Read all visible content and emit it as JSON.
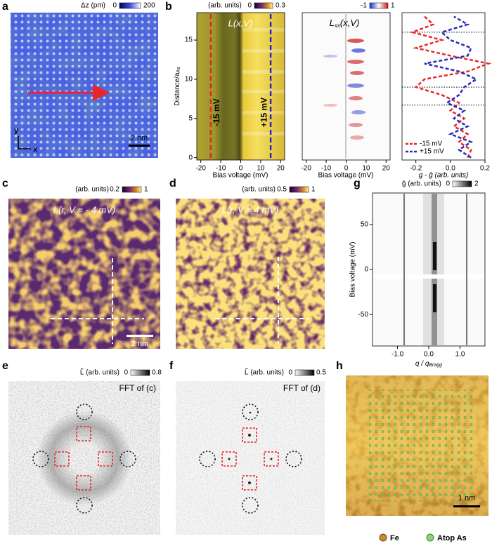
{
  "a": {
    "label": "a",
    "colorbar_title": "Δz (pm)",
    "cb_min": 0,
    "cb_max": 200,
    "axis_y": "y",
    "axis_x": "x",
    "scale": "2 nm"
  },
  "b": {
    "label": "b",
    "map1": {
      "colorbar_title": "(arb. units)",
      "cb_min": 0,
      "cb_max": 0.3,
      "title": "L(x,V)",
      "xlabel": "Bias voltage (mV)",
      "ylabel": [
        "Distance/a",
        "As"
      ],
      "xlim": [
        -22,
        22
      ],
      "xticks": [
        -20,
        -10,
        0,
        10,
        20
      ],
      "ylim": [
        -0.3,
        18.5
      ],
      "yticks": [
        0,
        5,
        10,
        15
      ],
      "cuts": [
        {
          "value": -15,
          "label": "-15 mV",
          "color": "#e8262a"
        },
        {
          "value": 15,
          "label": "+15 mV",
          "color": "#2a2ab8"
        }
      ]
    },
    "map2": {
      "title": [
        "L",
        "xx",
        "(x,V)"
      ],
      "cb_min": -1,
      "cb_max": 1,
      "xlabel": "Bias voltage (mV)",
      "xlim": [
        -22,
        22
      ],
      "xticks": [
        -20,
        -10,
        0,
        10,
        20
      ]
    }
  },
  "chart_data": {
    "type": "line",
    "xlabel": "g - ḡ (arb. units)",
    "xlim": [
      -0.28,
      0.2
    ],
    "xticks": [
      -0.2,
      {
        "value": 0,
        "label": "0.0"
      },
      0.2
    ],
    "ylim": [
      -0.3,
      18.5
    ],
    "y": [
      0,
      1,
      2,
      3,
      4,
      5,
      6,
      7,
      8,
      9,
      10,
      11,
      12,
      13,
      14,
      15,
      16,
      17,
      18
    ],
    "hlines": [
      16,
      9,
      6.7
    ],
    "legend": "lower left",
    "series": [
      {
        "name": "-15 mV",
        "color": "#e8262a",
        "values": [
          0.1,
          0.12,
          0.05,
          0.1,
          0.02,
          0.08,
          0.0,
          0.05,
          -0.05,
          -0.2,
          -0.15,
          0.1,
          0.22,
          0.0,
          -0.2,
          -0.05,
          -0.22,
          -0.1,
          -0.15
        ]
      },
      {
        "name": "+15 mV",
        "color": "#2a2ab8",
        "values": [
          0.12,
          0.05,
          0.12,
          0.0,
          0.1,
          0.02,
          0.08,
          -0.02,
          0.05,
          0.08,
          0.15,
          0.05,
          -0.15,
          0.1,
          0.12,
          0.0,
          -0.05,
          0.1,
          0.02
        ]
      }
    ]
  },
  "c": {
    "label": "c",
    "colorbar_title": "(arb. units)",
    "cb_min": 0.2,
    "cb_max": 1,
    "title": "L(r, V = - 4 mV)",
    "scale": "2 nm"
  },
  "d": {
    "label": "d",
    "colorbar_title": "(arb. units)",
    "cb_min": 0.5,
    "cb_max": 1,
    "title": "L(r, V = 4 mV)"
  },
  "e": {
    "label": "e",
    "colorbar_title": "L̃ (arb. units)",
    "cb_min": 0,
    "cb_max": 0.8,
    "title": "FFT of (c)"
  },
  "f": {
    "label": "f",
    "colorbar_title": "L̃ (arb. units)",
    "cb_min": 0,
    "cb_max": 0.5,
    "title": "FFT of (d)"
  },
  "g": {
    "label": "g",
    "colorbar_title": "g̃ (arb. units)",
    "cb_min": 0,
    "cb_max": 2,
    "ylabel": "Bias voltage (mV)",
    "xlabel": [
      "q / q",
      "Bragg"
    ],
    "xlim": [
      -1.8,
      1.8
    ],
    "xticks": [
      {
        "value": -1,
        "label": "-1.0"
      },
      {
        "value": 0,
        "label": "0.0"
      },
      {
        "value": 1,
        "label": "1.0"
      }
    ],
    "ylim": [
      -85,
      85
    ],
    "yticks": [
      -50,
      0,
      50
    ]
  },
  "h": {
    "label": "h",
    "scale": "1 nm",
    "legend": [
      "Fe",
      "Atop As"
    ]
  }
}
